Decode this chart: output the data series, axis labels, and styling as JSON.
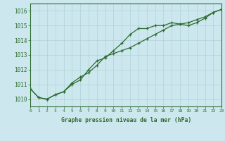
{
  "title": "Graphe pression niveau de la mer (hPa)",
  "background_color": "#cce8ee",
  "grid_color": "#b0d0d8",
  "line_color": "#2d6a2d",
  "border_color": "#2d6a2d",
  "x_min": 0,
  "x_max": 23,
  "y_min": 1009.5,
  "y_max": 1016.5,
  "yticks": [
    1010,
    1011,
    1012,
    1013,
    1014,
    1015,
    1016
  ],
  "xticks": [
    0,
    1,
    2,
    3,
    4,
    5,
    6,
    7,
    8,
    9,
    10,
    11,
    12,
    13,
    14,
    15,
    16,
    17,
    18,
    19,
    20,
    21,
    22,
    23
  ],
  "series1_x": [
    0,
    1,
    2,
    3,
    4,
    5,
    6,
    7,
    8,
    9,
    10,
    11,
    12,
    13,
    14,
    15,
    16,
    17,
    18,
    19,
    20,
    21,
    22,
    23
  ],
  "series1_y": [
    1010.7,
    1010.1,
    1010.0,
    1010.3,
    1010.5,
    1011.0,
    1011.3,
    1012.0,
    1012.6,
    1012.8,
    1013.3,
    1013.8,
    1014.4,
    1014.8,
    1014.8,
    1015.0,
    1015.0,
    1015.2,
    1015.1,
    1015.0,
    1015.2,
    1015.5,
    1015.9,
    1016.1
  ],
  "series2_x": [
    0,
    1,
    2,
    3,
    4,
    5,
    6,
    7,
    8,
    9,
    10,
    11,
    12,
    13,
    14,
    15,
    16,
    17,
    18,
    19,
    20,
    21,
    22,
    23
  ],
  "series2_y": [
    1010.7,
    1010.1,
    1010.0,
    1010.3,
    1010.5,
    1011.1,
    1011.5,
    1011.8,
    1012.3,
    1012.9,
    1013.1,
    1013.3,
    1013.5,
    1013.8,
    1014.1,
    1014.4,
    1014.7,
    1015.0,
    1015.1,
    1015.2,
    1015.4,
    1015.6,
    1015.9,
    1016.1
  ]
}
